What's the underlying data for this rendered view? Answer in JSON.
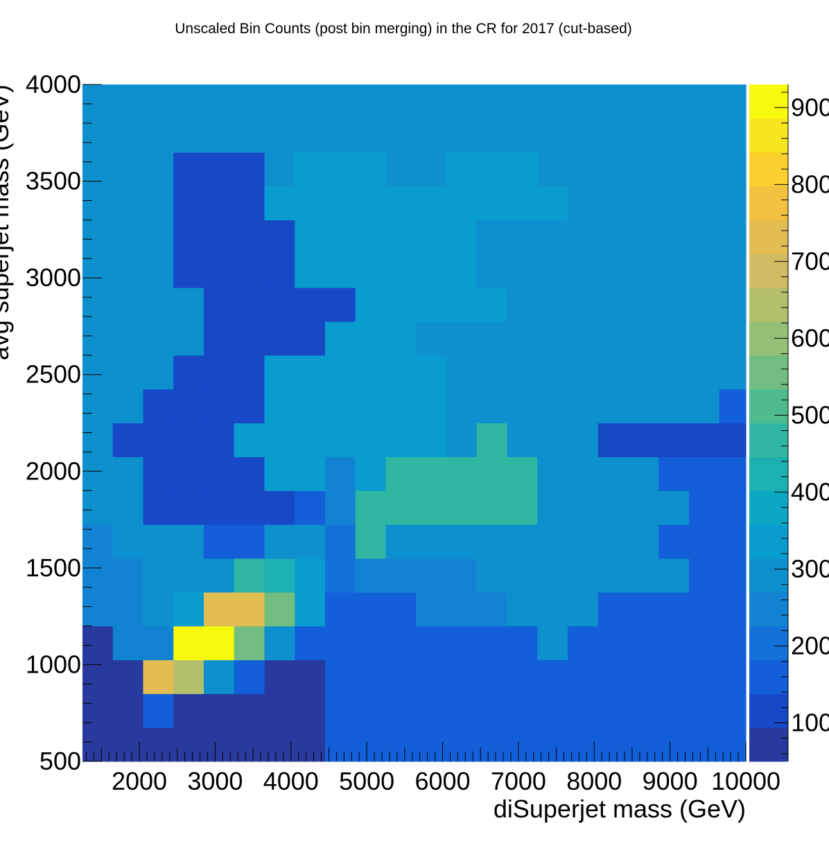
{
  "chart_data": {
    "type": "heatmap",
    "title": "Unscaled Bin Counts (post bin merging) in the CR for 2017 (cut-based)",
    "xlabel": "diSuperjet mass (GeV)",
    "ylabel": "avg superjet mass (GeV)",
    "xlim": [
      1250,
      10000
    ],
    "ylim": [
      500,
      4000
    ],
    "xticks": [
      2000,
      3000,
      4000,
      5000,
      6000,
      7000,
      8000,
      9000,
      10000
    ],
    "yticks": [
      500,
      1000,
      1500,
      2000,
      2500,
      3000,
      3500,
      4000
    ],
    "xbins": [
      1250,
      1650,
      2050,
      2450,
      2850,
      3250,
      3650,
      4050,
      4450,
      4850,
      5250,
      5650,
      6050,
      6450,
      6850,
      7250,
      7650,
      8050,
      8450,
      8850,
      9250,
      9650,
      10000
    ],
    "ybins": [
      500,
      675,
      850,
      1025,
      1200,
      1375,
      1550,
      1725,
      1900,
      2075,
      2250,
      2425,
      2600,
      2775,
      2950,
      3125,
      3300,
      3475,
      3650,
      3825,
      4000
    ],
    "z": [
      [
        50,
        50,
        50,
        50,
        50,
        50,
        50,
        50,
        150,
        150,
        150,
        150,
        150,
        150,
        150,
        150,
        150,
        150,
        150,
        150,
        150,
        150
      ],
      [
        50,
        50,
        150,
        50,
        50,
        50,
        50,
        50,
        150,
        150,
        150,
        150,
        150,
        150,
        150,
        150,
        150,
        150,
        150,
        150,
        150,
        150
      ],
      [
        50,
        50,
        730,
        650,
        300,
        180,
        50,
        50,
        150,
        150,
        150,
        150,
        150,
        150,
        150,
        150,
        150,
        150,
        150,
        150,
        150,
        150
      ],
      [
        50,
        250,
        250,
        930,
        930,
        560,
        300,
        150,
        150,
        150,
        150,
        150,
        150,
        150,
        150,
        300,
        150,
        150,
        150,
        150,
        150,
        150
      ],
      [
        250,
        250,
        300,
        350,
        730,
        730,
        560,
        350,
        150,
        150,
        150,
        250,
        250,
        250,
        300,
        300,
        300,
        150,
        150,
        150,
        150,
        150
      ],
      [
        250,
        250,
        300,
        300,
        300,
        450,
        420,
        350,
        200,
        250,
        250,
        250,
        250,
        300,
        300,
        300,
        300,
        300,
        300,
        300,
        150,
        150
      ],
      [
        250,
        300,
        300,
        300,
        150,
        150,
        300,
        300,
        200,
        470,
        300,
        300,
        300,
        300,
        300,
        300,
        300,
        300,
        300,
        150,
        150,
        150
      ],
      [
        300,
        300,
        100,
        100,
        100,
        100,
        100,
        150,
        250,
        450,
        450,
        450,
        450,
        450,
        450,
        300,
        300,
        300,
        300,
        300,
        150,
        150
      ],
      [
        300,
        300,
        100,
        100,
        100,
        100,
        350,
        350,
        250,
        350,
        450,
        450,
        450,
        450,
        450,
        300,
        300,
        300,
        300,
        150,
        150,
        150
      ],
      [
        300,
        100,
        100,
        100,
        100,
        350,
        350,
        350,
        350,
        350,
        350,
        350,
        300,
        450,
        300,
        300,
        300,
        100,
        100,
        100,
        100,
        100
      ],
      [
        300,
        300,
        100,
        100,
        100,
        100,
        350,
        350,
        350,
        350,
        350,
        350,
        300,
        300,
        300,
        300,
        300,
        300,
        300,
        300,
        300,
        150
      ],
      [
        300,
        300,
        300,
        100,
        100,
        100,
        350,
        350,
        350,
        350,
        350,
        350,
        300,
        300,
        300,
        300,
        300,
        300,
        300,
        300,
        300,
        300
      ],
      [
        300,
        300,
        300,
        300,
        100,
        100,
        100,
        100,
        350,
        350,
        350,
        300,
        300,
        300,
        300,
        300,
        300,
        300,
        300,
        300,
        300,
        300
      ],
      [
        300,
        300,
        300,
        300,
        100,
        100,
        100,
        100,
        100,
        350,
        350,
        350,
        350,
        350,
        300,
        300,
        300,
        300,
        300,
        300,
        300,
        300
      ],
      [
        300,
        300,
        300,
        100,
        100,
        100,
        100,
        350,
        350,
        350,
        350,
        350,
        350,
        300,
        300,
        300,
        300,
        300,
        300,
        300,
        300,
        300
      ],
      [
        300,
        300,
        300,
        100,
        100,
        100,
        100,
        350,
        350,
        350,
        350,
        350,
        350,
        300,
        300,
        300,
        300,
        300,
        300,
        300,
        300,
        300
      ],
      [
        300,
        300,
        300,
        100,
        100,
        100,
        350,
        350,
        350,
        350,
        350,
        350,
        350,
        350,
        350,
        350,
        300,
        300,
        300,
        300,
        300,
        300
      ],
      [
        300,
        300,
        300,
        100,
        100,
        100,
        300,
        350,
        350,
        350,
        300,
        300,
        350,
        350,
        350,
        300,
        300,
        300,
        300,
        300,
        300,
        300
      ],
      [
        300,
        300,
        300,
        300,
        300,
        300,
        300,
        300,
        300,
        300,
        300,
        300,
        300,
        300,
        300,
        300,
        300,
        300,
        300,
        300,
        300,
        300
      ],
      [
        300,
        300,
        300,
        300,
        300,
        300,
        300,
        300,
        300,
        300,
        300,
        300,
        300,
        300,
        300,
        300,
        300,
        300,
        300,
        300,
        300,
        300
      ]
    ],
    "zlim": [
      50,
      930
    ],
    "colorbar": {
      "ticks": [
        100,
        200,
        300,
        400,
        500,
        600,
        700,
        800,
        900
      ],
      "colors": [
        "#283a9e",
        "#1749c7",
        "#125fd9",
        "#1272da",
        "#1283d2",
        "#0e90cf",
        "#089ccf",
        "#0aa8c2",
        "#1cb0b0",
        "#30b7a1",
        "#4dbb8e",
        "#72bd81",
        "#93bf76",
        "#b4bf6e",
        "#d2bc63",
        "#e2bd52",
        "#f2c13f",
        "#fbcf2e",
        "#f8e41f",
        "#f7fa0c"
      ]
    },
    "grid": false,
    "legend": "none"
  }
}
